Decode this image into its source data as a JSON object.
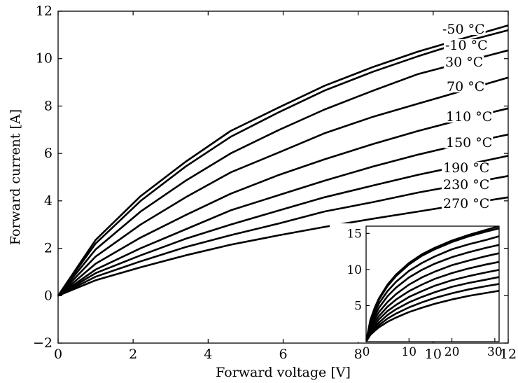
{
  "chart_data": [
    {
      "type": "line",
      "title": "",
      "xlabel": "Forward voltage [V]",
      "ylabel": "Forward current [A]",
      "xlim": [
        0,
        12
      ],
      "ylim": [
        -2,
        12
      ],
      "xticks": [
        "0",
        "2",
        "4",
        "6",
        "8",
        "10",
        "12"
      ],
      "yticks": [
        "−2",
        "0",
        "2",
        "4",
        "6",
        "8",
        "10",
        "12"
      ],
      "grid": false,
      "legend": "none",
      "x": [
        0,
        1,
        2.2,
        3.4,
        4.6,
        5.9,
        7.1,
        8.4,
        9.6,
        10.8,
        12
      ],
      "series": [
        {
          "name": "-50 °C",
          "values": [
            0,
            2.35,
            4.2,
            5.65,
            6.95,
            7.95,
            8.85,
            9.65,
            10.3,
            10.85,
            11.4
          ]
        },
        {
          "name": "-10 °C",
          "values": [
            0,
            2.2,
            4.0,
            5.45,
            6.7,
            7.75,
            8.65,
            9.45,
            10.1,
            10.7,
            11.2
          ]
        },
        {
          "name": "30 °C",
          "values": [
            0,
            1.95,
            3.55,
            4.85,
            6.0,
            7.0,
            7.85,
            8.65,
            9.35,
            9.85,
            10.35
          ]
        },
        {
          "name": "70 °C",
          "values": [
            0,
            1.65,
            3.0,
            4.15,
            5.2,
            6.05,
            6.85,
            7.55,
            8.1,
            8.65,
            9.2
          ]
        },
        {
          "name": "110 °C",
          "values": [
            0,
            1.35,
            2.45,
            3.4,
            4.3,
            5.1,
            5.75,
            6.4,
            6.95,
            7.45,
            7.9
          ]
        },
        {
          "name": "150 °C",
          "values": [
            0,
            1.1,
            2.0,
            2.8,
            3.6,
            4.25,
            4.85,
            5.45,
            5.95,
            6.4,
            6.8
          ]
        },
        {
          "name": "190 °C",
          "values": [
            0,
            0.95,
            1.7,
            2.4,
            3.0,
            3.6,
            4.15,
            4.65,
            5.1,
            5.5,
            5.9
          ]
        },
        {
          "name": "230 °C",
          "values": [
            0,
            0.8,
            1.45,
            2.05,
            2.55,
            3.05,
            3.55,
            3.95,
            4.35,
            4.7,
            5.05
          ]
        },
        {
          "name": "270 °C",
          "values": [
            0,
            0.65,
            1.2,
            1.7,
            2.15,
            2.55,
            2.9,
            3.25,
            3.55,
            3.85,
            4.15
          ]
        }
      ]
    },
    {
      "type": "line",
      "title": "",
      "xlabel": "",
      "ylabel": "",
      "xlim": [
        0,
        31
      ],
      "ylim": [
        0,
        16
      ],
      "xticks": [
        "0",
        "10",
        "20",
        "30"
      ],
      "yticks": [
        "5",
        "10",
        "15"
      ],
      "grid": false,
      "legend": "none",
      "x": [
        0,
        1,
        2,
        3,
        5,
        7,
        10,
        13,
        16,
        20,
        24,
        28,
        31
      ],
      "series": [
        {
          "values": [
            0,
            3.0,
            4.7,
            6.0,
            7.9,
            9.3,
            10.9,
            12.1,
            13.0,
            14.0,
            14.8,
            15.5,
            16.0
          ]
        },
        {
          "values": [
            0,
            2.9,
            4.6,
            5.85,
            7.7,
            9.1,
            10.7,
            11.9,
            12.8,
            13.8,
            14.6,
            15.25,
            15.7
          ]
        },
        {
          "values": [
            0,
            2.6,
            4.1,
            5.3,
            7.0,
            8.3,
            9.8,
            10.9,
            11.8,
            12.8,
            13.5,
            14.1,
            14.6
          ]
        },
        {
          "values": [
            0,
            2.3,
            3.6,
            4.7,
            6.3,
            7.5,
            8.9,
            9.95,
            10.8,
            11.7,
            12.4,
            13.0,
            13.4
          ]
        },
        {
          "values": [
            0,
            1.95,
            3.15,
            4.1,
            5.5,
            6.6,
            7.9,
            8.9,
            9.7,
            10.6,
            11.25,
            11.85,
            12.25
          ]
        },
        {
          "values": [
            0,
            1.7,
            2.75,
            3.55,
            4.85,
            5.85,
            7.0,
            7.9,
            8.7,
            9.5,
            10.15,
            10.7,
            11.05
          ]
        },
        {
          "values": [
            0,
            1.45,
            2.35,
            3.1,
            4.25,
            5.1,
            6.2,
            7.0,
            7.75,
            8.5,
            9.1,
            9.6,
            9.95
          ]
        },
        {
          "values": [
            0,
            1.25,
            2.05,
            2.65,
            3.7,
            4.5,
            5.45,
            6.2,
            6.85,
            7.6,
            8.15,
            8.6,
            8.95
          ]
        },
        {
          "values": [
            0,
            1.1,
            1.75,
            2.3,
            3.2,
            3.9,
            4.75,
            5.45,
            6.05,
            6.7,
            7.25,
            7.7,
            8.0
          ]
        },
        {
          "values": [
            0,
            0.95,
            1.5,
            2.0,
            2.75,
            3.35,
            4.1,
            4.7,
            5.25,
            5.85,
            6.35,
            6.75,
            7.05
          ]
        }
      ]
    }
  ]
}
